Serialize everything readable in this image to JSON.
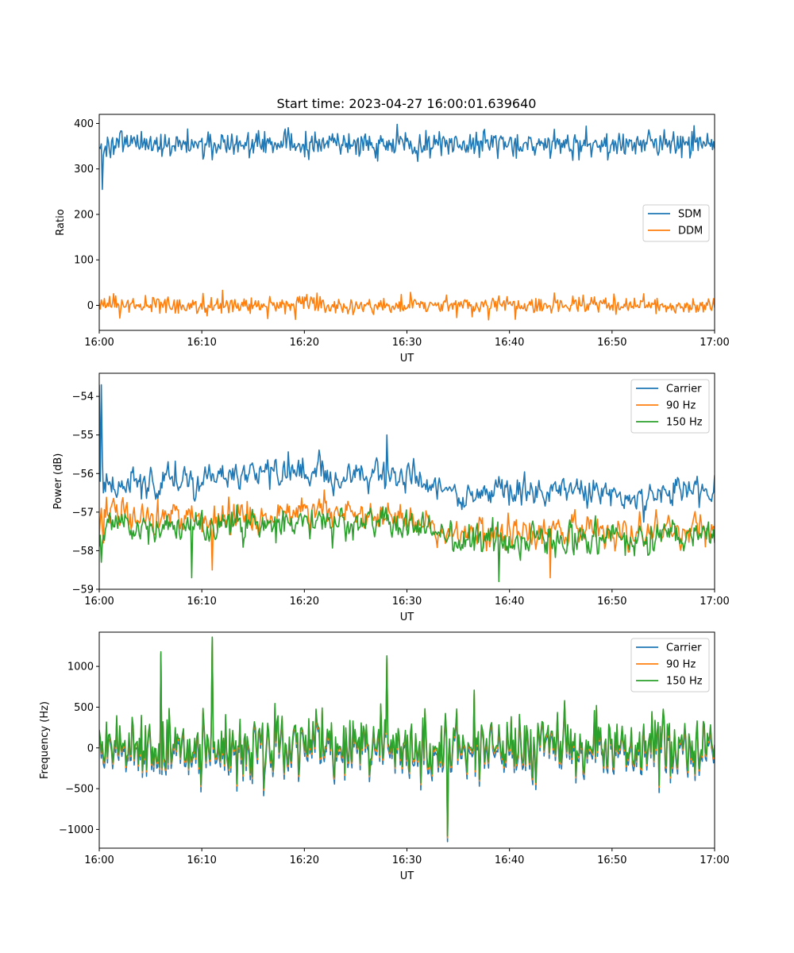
{
  "figure": {
    "title": "Start time: 2023-04-27 16:00:01.639640"
  },
  "colors": {
    "blue": "#1f77b4",
    "orange": "#ff7f0e",
    "green": "#2ca02c"
  },
  "chart_data": [
    {
      "type": "line",
      "title": "Start time: 2023-04-27 16:00:01.639640",
      "xlabel": "UT",
      "ylabel": "Ratio",
      "xlim": [
        "16:00",
        "17:00"
      ],
      "xticks": [
        "16:00",
        "16:10",
        "16:20",
        "16:30",
        "16:40",
        "16:50",
        "17:00"
      ],
      "ylim": [
        -55,
        420
      ],
      "yticks": [
        0,
        100,
        200,
        300,
        400
      ],
      "grid": false,
      "legend": "center-right",
      "sampling": "approx. one point every 6 seconds from 16:00 to 17:00",
      "series": [
        {
          "name": "SDM",
          "color": "#1f77b4",
          "level": 355,
          "spread": 14,
          "initial_values": [
            348,
            345,
            355,
            255,
            330,
            342,
            350
          ],
          "extremes": [
            {
              "time": "16:29",
              "value": 398
            },
            {
              "time": "16:58",
              "value": 395
            },
            {
              "time": "16:11",
              "value": 320
            }
          ]
        },
        {
          "name": "DDM",
          "color": "#ff7f0e",
          "level": 0,
          "spread": 9,
          "initial_values": [
            5,
            -8,
            12,
            3,
            -2,
            15,
            -5
          ],
          "extremes": [
            {
              "time": "16:12",
              "value": 33
            },
            {
              "time": "16:02",
              "value": -28
            },
            {
              "time": "16:38",
              "value": -32
            }
          ]
        }
      ]
    },
    {
      "type": "line",
      "xlabel": "UT",
      "ylabel": "Power (dB)",
      "xlim": [
        "16:00",
        "17:00"
      ],
      "xticks": [
        "16:00",
        "16:10",
        "16:20",
        "16:30",
        "16:40",
        "16:50",
        "17:00"
      ],
      "ylim": [
        -59,
        -53.4
      ],
      "yticks": [
        -59,
        -58,
        -57,
        -56,
        -55,
        -54
      ],
      "grid": false,
      "legend": "top-right",
      "series": [
        {
          "name": "Carrier",
          "color": "#1f77b4",
          "trend": [
            [
              0,
              -56.3
            ],
            [
              10,
              -56.2
            ],
            [
              20,
              -55.9
            ],
            [
              30,
              -56.1
            ],
            [
              35,
              -56.6
            ],
            [
              40,
              -56.4
            ],
            [
              50,
              -56.5
            ],
            [
              60,
              -56.4
            ]
          ],
          "spread": 0.35,
          "initial_values": [
            -57.5,
            -56.2,
            -53.7,
            -55.6,
            -56.5
          ],
          "extremes": [
            {
              "time": "16:00",
              "value": -53.7
            },
            {
              "time": "16:28",
              "value": -55.0
            }
          ]
        },
        {
          "name": "90 Hz",
          "color": "#ff7f0e",
          "trend": [
            [
              0,
              -57.1
            ],
            [
              10,
              -57.2
            ],
            [
              20,
              -57.0
            ],
            [
              30,
              -57.2
            ],
            [
              35,
              -57.6
            ],
            [
              40,
              -57.6
            ],
            [
              50,
              -57.5
            ],
            [
              60,
              -57.4
            ]
          ],
          "spread": 0.35,
          "initial_values": [
            -57.6,
            -57.2,
            -56.9,
            -57.4,
            -57.8
          ],
          "extremes": [
            {
              "time": "16:44",
              "value": -58.7
            },
            {
              "time": "16:11",
              "value": -58.5
            }
          ]
        },
        {
          "name": "150 Hz",
          "color": "#2ca02c",
          "trend": [
            [
              0,
              -57.4
            ],
            [
              10,
              -57.4
            ],
            [
              20,
              -57.2
            ],
            [
              30,
              -57.3
            ],
            [
              35,
              -57.7
            ],
            [
              40,
              -57.7
            ],
            [
              50,
              -57.6
            ],
            [
              60,
              -57.6
            ]
          ],
          "spread": 0.35,
          "initial_values": [
            -57.9,
            -57.6,
            -58.3,
            -57.8,
            -57.6
          ],
          "extremes": [
            {
              "time": "16:09",
              "value": -58.7
            },
            {
              "time": "16:39",
              "value": -58.8
            }
          ]
        }
      ]
    },
    {
      "type": "line",
      "xlabel": "UT",
      "ylabel": "Frequency (Hz)",
      "xlim": [
        "16:00",
        "17:00"
      ],
      "xticks": [
        "16:00",
        "16:10",
        "16:20",
        "16:30",
        "16:40",
        "16:50",
        "17:00"
      ],
      "ylim": [
        -1230,
        1420
      ],
      "yticks": [
        -1000,
        -500,
        0,
        500,
        1000
      ],
      "grid": false,
      "legend": "top-right",
      "series": [
        {
          "name": "Carrier",
          "color": "#1f77b4",
          "relation": "150 Hz values scaled by about 1.04 and shifted about -70 Hz",
          "extremes": [
            {
              "time": "16:34",
              "value": -1150
            }
          ]
        },
        {
          "name": "90 Hz",
          "color": "#ff7f0e",
          "relation": "150 Hz values shifted about -25 Hz"
        },
        {
          "name": "150 Hz",
          "color": "#2ca02c",
          "level": 50,
          "spread": 420,
          "extremes": [
            {
              "time": "16:11",
              "value": 1360
            },
            {
              "time": "16:06",
              "value": 1180
            },
            {
              "time": "16:34",
              "value": -1080
            },
            {
              "time": "16:28",
              "value": 1130
            }
          ]
        }
      ]
    }
  ]
}
